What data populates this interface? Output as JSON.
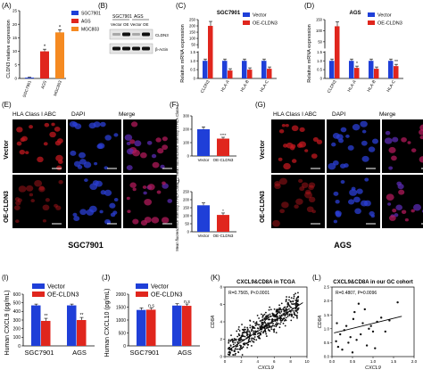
{
  "panels": {
    "A": {
      "letter": "(A)",
      "ylabel": "CLDN3 relative expression"
    },
    "B": {
      "letter": "(B)",
      "cell_labels": [
        "SGC7901",
        "AGS"
      ],
      "lane_labels": [
        "Vector",
        "OE",
        "Vector",
        "OE"
      ],
      "band_labels": [
        "CLDN3",
        "β-Actin"
      ]
    },
    "C": {
      "letter": "(C)",
      "ylabel": "Relative mRNA  expression"
    },
    "D": {
      "letter": "(D)",
      "ylabel": "Relative mRNA  expression"
    },
    "E": {
      "letter": "(E)",
      "headers": [
        "HLA Class I ABC",
        "DAPI",
        "Merge"
      ],
      "rows": [
        "Vector",
        "OE-CLDN3"
      ],
      "caption": "SGC7901"
    },
    "F": {
      "letter": "(F)",
      "ylabel": "Mean fluorescence intensity of HLA Class I"
    },
    "G": {
      "letter": "(G)",
      "headers": [
        "HLA Class I ABC",
        "DAPI",
        "Merge"
      ],
      "rows": [
        "Vector",
        "OE-CLDN3"
      ],
      "caption": "AGS"
    },
    "H": {
      "letter": "(H)",
      "ylabel": "Mean fluorescence intensity of HLA Class I"
    },
    "I": {
      "letter": "(I)",
      "ylabel": "Human CXCL9 (pg/mL)"
    },
    "J": {
      "letter": "(J)",
      "ylabel": "Human CXCL10 (pg/mL)"
    },
    "K": {
      "letter": "(K)"
    },
    "L": {
      "letter": "(L)"
    }
  },
  "chart_data": [
    {
      "id": "A",
      "type": "bar",
      "categories": [
        "SGC7901",
        "AGS",
        "MGC803"
      ],
      "values": [
        0.3,
        10,
        17
      ],
      "errors": [
        0.2,
        0.8,
        1.0
      ],
      "colors": [
        "#1f3fd8",
        "#e0261d",
        "#f58a21"
      ],
      "legend": [
        "SGC7901",
        "AGS",
        "MGC803"
      ],
      "ylim": [
        0,
        25
      ],
      "yticks": [
        0,
        5,
        10,
        15,
        20,
        25
      ],
      "annotations": [
        "*",
        "*"
      ]
    },
    {
      "id": "C",
      "type": "bar",
      "title": "SGC7901",
      "categories": [
        "CLDN3",
        "HLA-A",
        "HLA-B",
        "HLA-C"
      ],
      "series": [
        {
          "name": "Vector",
          "color": "#1f3fd8",
          "values": [
            1,
            1,
            1,
            1
          ]
        },
        {
          "name": "OE-CLDN3",
          "color": "#e0261d",
          "values": [
            200,
            0.45,
            0.5,
            0.55
          ]
        }
      ],
      "ylim": [
        0,
        250
      ],
      "ytick_labels": [
        "0",
        "0.5",
        "1.0",
        "1.5",
        "50",
        "100",
        "150",
        "200",
        "250"
      ]
    },
    {
      "id": "D",
      "type": "bar",
      "title": "AGS",
      "categories": [
        "CLDN3",
        "HLA-A",
        "HLA-B",
        "HLA-C"
      ],
      "series": [
        {
          "name": "Vector",
          "color": "#1f3fd8",
          "values": [
            1,
            1,
            1,
            1
          ]
        },
        {
          "name": "OE-CLDN3",
          "color": "#e0261d",
          "values": [
            120,
            0.6,
            0.55,
            0.7
          ]
        }
      ],
      "ylim": [
        0,
        150
      ],
      "ytick_labels": [
        "0",
        "0.5",
        "1.0",
        "1.5",
        "50",
        "100",
        "150"
      ],
      "annotations": [
        "*",
        "**"
      ]
    },
    {
      "id": "F",
      "type": "bar",
      "categories": [
        "Vector",
        "OE-CLDN3"
      ],
      "values": [
        200,
        130
      ],
      "errors": [
        18,
        10
      ],
      "colors": [
        "#1f3fd8",
        "#e0261d"
      ],
      "ylim": [
        0,
        300
      ],
      "yticks": [
        0,
        100,
        200,
        300
      ],
      "annotations": [
        "****"
      ]
    },
    {
      "id": "H",
      "type": "bar",
      "categories": [
        "Vector",
        "OE-CLDN3"
      ],
      "values": [
        165,
        105
      ],
      "errors": [
        15,
        12
      ],
      "colors": [
        "#1f3fd8",
        "#e0261d"
      ],
      "ylim": [
        0,
        250
      ],
      "yticks": [
        0,
        50,
        100,
        150,
        200,
        250
      ],
      "annotations": [
        "*"
      ]
    },
    {
      "id": "I",
      "type": "bar",
      "categories": [
        "SGC7901",
        "AGS"
      ],
      "series": [
        {
          "name": "Vector",
          "color": "#1f3fd8",
          "values": [
            470,
            470
          ]
        },
        {
          "name": "OE-CLDN3",
          "color": "#e0261d",
          "values": [
            290,
            300
          ]
        }
      ],
      "errors": [
        [
          15,
          15
        ],
        [
          30,
          30
        ]
      ],
      "ylim": [
        0,
        600
      ],
      "yticks": [
        0,
        100,
        200,
        300,
        400,
        500,
        600
      ],
      "annotations": [
        "**",
        "**"
      ]
    },
    {
      "id": "J",
      "type": "bar",
      "categories": [
        "SGC7901",
        "AGS"
      ],
      "series": [
        {
          "name": "Vector",
          "color": "#1f3fd8",
          "values": [
            1390,
            1560
          ]
        },
        {
          "name": "OE-CLDN3",
          "color": "#e0261d",
          "values": [
            1400,
            1550
          ]
        }
      ],
      "errors": [
        [
          80,
          70
        ],
        [
          60,
          70
        ]
      ],
      "ylim": [
        0,
        2000
      ],
      "yticks": [
        0,
        500,
        1000,
        1500,
        2000
      ],
      "annotations": [
        "n.s",
        "n.s"
      ]
    },
    {
      "id": "K",
      "type": "scatter",
      "title": "CXCL9&CD8A in TCGA",
      "xlabel": "CXCL9",
      "ylabel": "CD8A",
      "xlim": [
        0,
        10
      ],
      "ylim": [
        0,
        8
      ],
      "xticks": [
        0,
        2,
        4,
        6,
        8,
        10
      ],
      "yticks": [
        0,
        2,
        4,
        6,
        8
      ],
      "stat": "R=0.7565, P<0.0001",
      "fit": [
        [
          0.5,
          0.8
        ],
        [
          9.5,
          6.2
        ]
      ]
    },
    {
      "id": "L",
      "type": "scatter",
      "title": "CXCL9&CD8A in our GC cohort",
      "xlabel": "CXCL9",
      "ylabel": "CD8A",
      "xlim": [
        0,
        2
      ],
      "ylim": [
        0,
        2.5
      ],
      "xticks": [
        0.0,
        0.5,
        1.0,
        1.5,
        2.0
      ],
      "yticks": [
        0.0,
        0.5,
        1.0,
        1.5,
        2.0,
        2.5
      ],
      "stat": "R=0.4807, P=0.0096",
      "fit": [
        [
          0.05,
          0.85
        ],
        [
          1.7,
          1.45
        ]
      ],
      "points": [
        [
          0.1,
          0.55
        ],
        [
          0.12,
          1.2
        ],
        [
          0.15,
          0.35
        ],
        [
          0.2,
          0.8
        ],
        [
          0.25,
          0.25
        ],
        [
          0.3,
          0.95
        ],
        [
          0.35,
          1.1
        ],
        [
          0.4,
          0.5
        ],
        [
          0.45,
          0.7
        ],
        [
          0.5,
          0.15
        ],
        [
          0.52,
          1.35
        ],
        [
          0.55,
          1.6
        ],
        [
          0.6,
          0.6
        ],
        [
          0.65,
          1.9
        ],
        [
          0.7,
          0.8
        ],
        [
          0.75,
          1.2
        ],
        [
          0.8,
          1.7
        ],
        [
          0.85,
          0.4
        ],
        [
          0.9,
          1.0
        ],
        [
          0.95,
          1.1
        ],
        [
          1.0,
          0.9
        ],
        [
          1.05,
          0.3
        ],
        [
          1.1,
          1.25
        ],
        [
          1.2,
          1.4
        ],
        [
          1.3,
          0.9
        ],
        [
          1.4,
          1.3
        ],
        [
          1.6,
          1.95
        ]
      ]
    }
  ]
}
